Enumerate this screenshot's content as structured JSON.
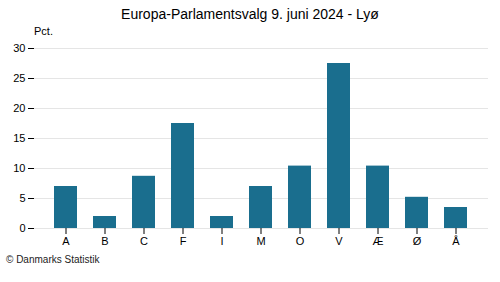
{
  "chart_data": {
    "type": "bar",
    "title": "Europa-Parlamentsvalg 9. juni 2024 - Lyø",
    "categories": [
      "A",
      "B",
      "C",
      "F",
      "I",
      "M",
      "O",
      "V",
      "Æ",
      "Ø",
      "Å"
    ],
    "values": [
      7.0,
      2.0,
      8.7,
      17.5,
      2.0,
      7.0,
      10.4,
      27.5,
      10.4,
      5.2,
      3.5
    ],
    "color": "#1a6e8e",
    "ylabel": "Pct.",
    "ylim": [
      0,
      30
    ],
    "yticks": [
      0,
      5,
      10,
      15,
      20,
      25,
      30
    ],
    "grid": true,
    "caption": "© Danmarks Statistik"
  }
}
